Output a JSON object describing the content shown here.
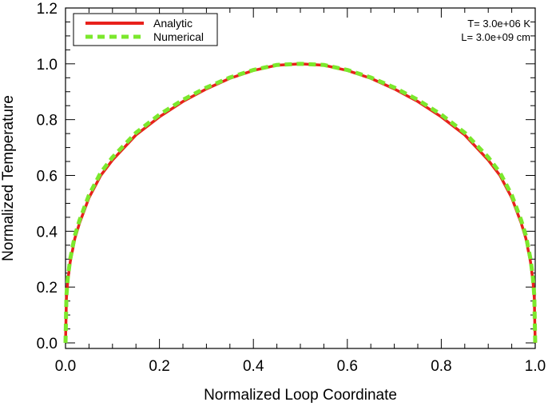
{
  "chart_data": {
    "type": "line",
    "title": "",
    "xlabel": "Normalized Loop Coordinate",
    "ylabel": "Normalized Temperature",
    "xlim": [
      0.0,
      1.0
    ],
    "ylim": [
      -0.02,
      1.2
    ],
    "xticks": [
      0.0,
      0.2,
      0.4,
      0.6,
      0.8,
      1.0
    ],
    "xtick_labels": [
      "0.0",
      "0.2",
      "0.4",
      "0.6",
      "0.8",
      "1.0"
    ],
    "yticks": [
      0.0,
      0.2,
      0.4,
      0.6,
      0.8,
      1.0,
      1.2
    ],
    "ytick_labels": [
      "0.0",
      "0.2",
      "0.4",
      "0.6",
      "0.8",
      "1.0",
      "1.2"
    ],
    "grid": false,
    "legend_position": "top-left",
    "x": [
      0.0,
      0.002,
      0.005,
      0.01,
      0.02,
      0.03,
      0.05,
      0.075,
      0.1,
      0.15,
      0.2,
      0.25,
      0.3,
      0.35,
      0.4,
      0.45,
      0.5,
      0.55,
      0.6,
      0.65,
      0.7,
      0.75,
      0.8,
      0.85,
      0.9,
      0.925,
      0.95,
      0.97,
      0.98,
      0.99,
      0.995,
      0.998,
      1.0
    ],
    "series": [
      {
        "name": "Analytic",
        "color": "#e8211c",
        "style": "solid",
        "values": [
          0.0,
          0.16,
          0.225,
          0.29,
          0.375,
          0.43,
          0.52,
          0.6,
          0.655,
          0.745,
          0.81,
          0.865,
          0.91,
          0.948,
          0.976,
          0.995,
          1.0,
          0.995,
          0.976,
          0.948,
          0.91,
          0.865,
          0.81,
          0.745,
          0.655,
          0.6,
          0.52,
          0.43,
          0.375,
          0.29,
          0.225,
          0.16,
          0.0
        ]
      },
      {
        "name": "Numerical",
        "color": "#7be82c",
        "style": "dashed",
        "values": [
          0.0,
          0.17,
          0.235,
          0.3,
          0.385,
          0.44,
          0.53,
          0.61,
          0.665,
          0.753,
          0.818,
          0.871,
          0.915,
          0.951,
          0.978,
          0.996,
          1.0,
          0.996,
          0.978,
          0.951,
          0.915,
          0.871,
          0.818,
          0.753,
          0.665,
          0.61,
          0.53,
          0.44,
          0.385,
          0.3,
          0.235,
          0.17,
          0.0
        ]
      }
    ],
    "annotations": [
      "T= 3.0e+06 K",
      "L= 3.0e+09 cm"
    ]
  }
}
